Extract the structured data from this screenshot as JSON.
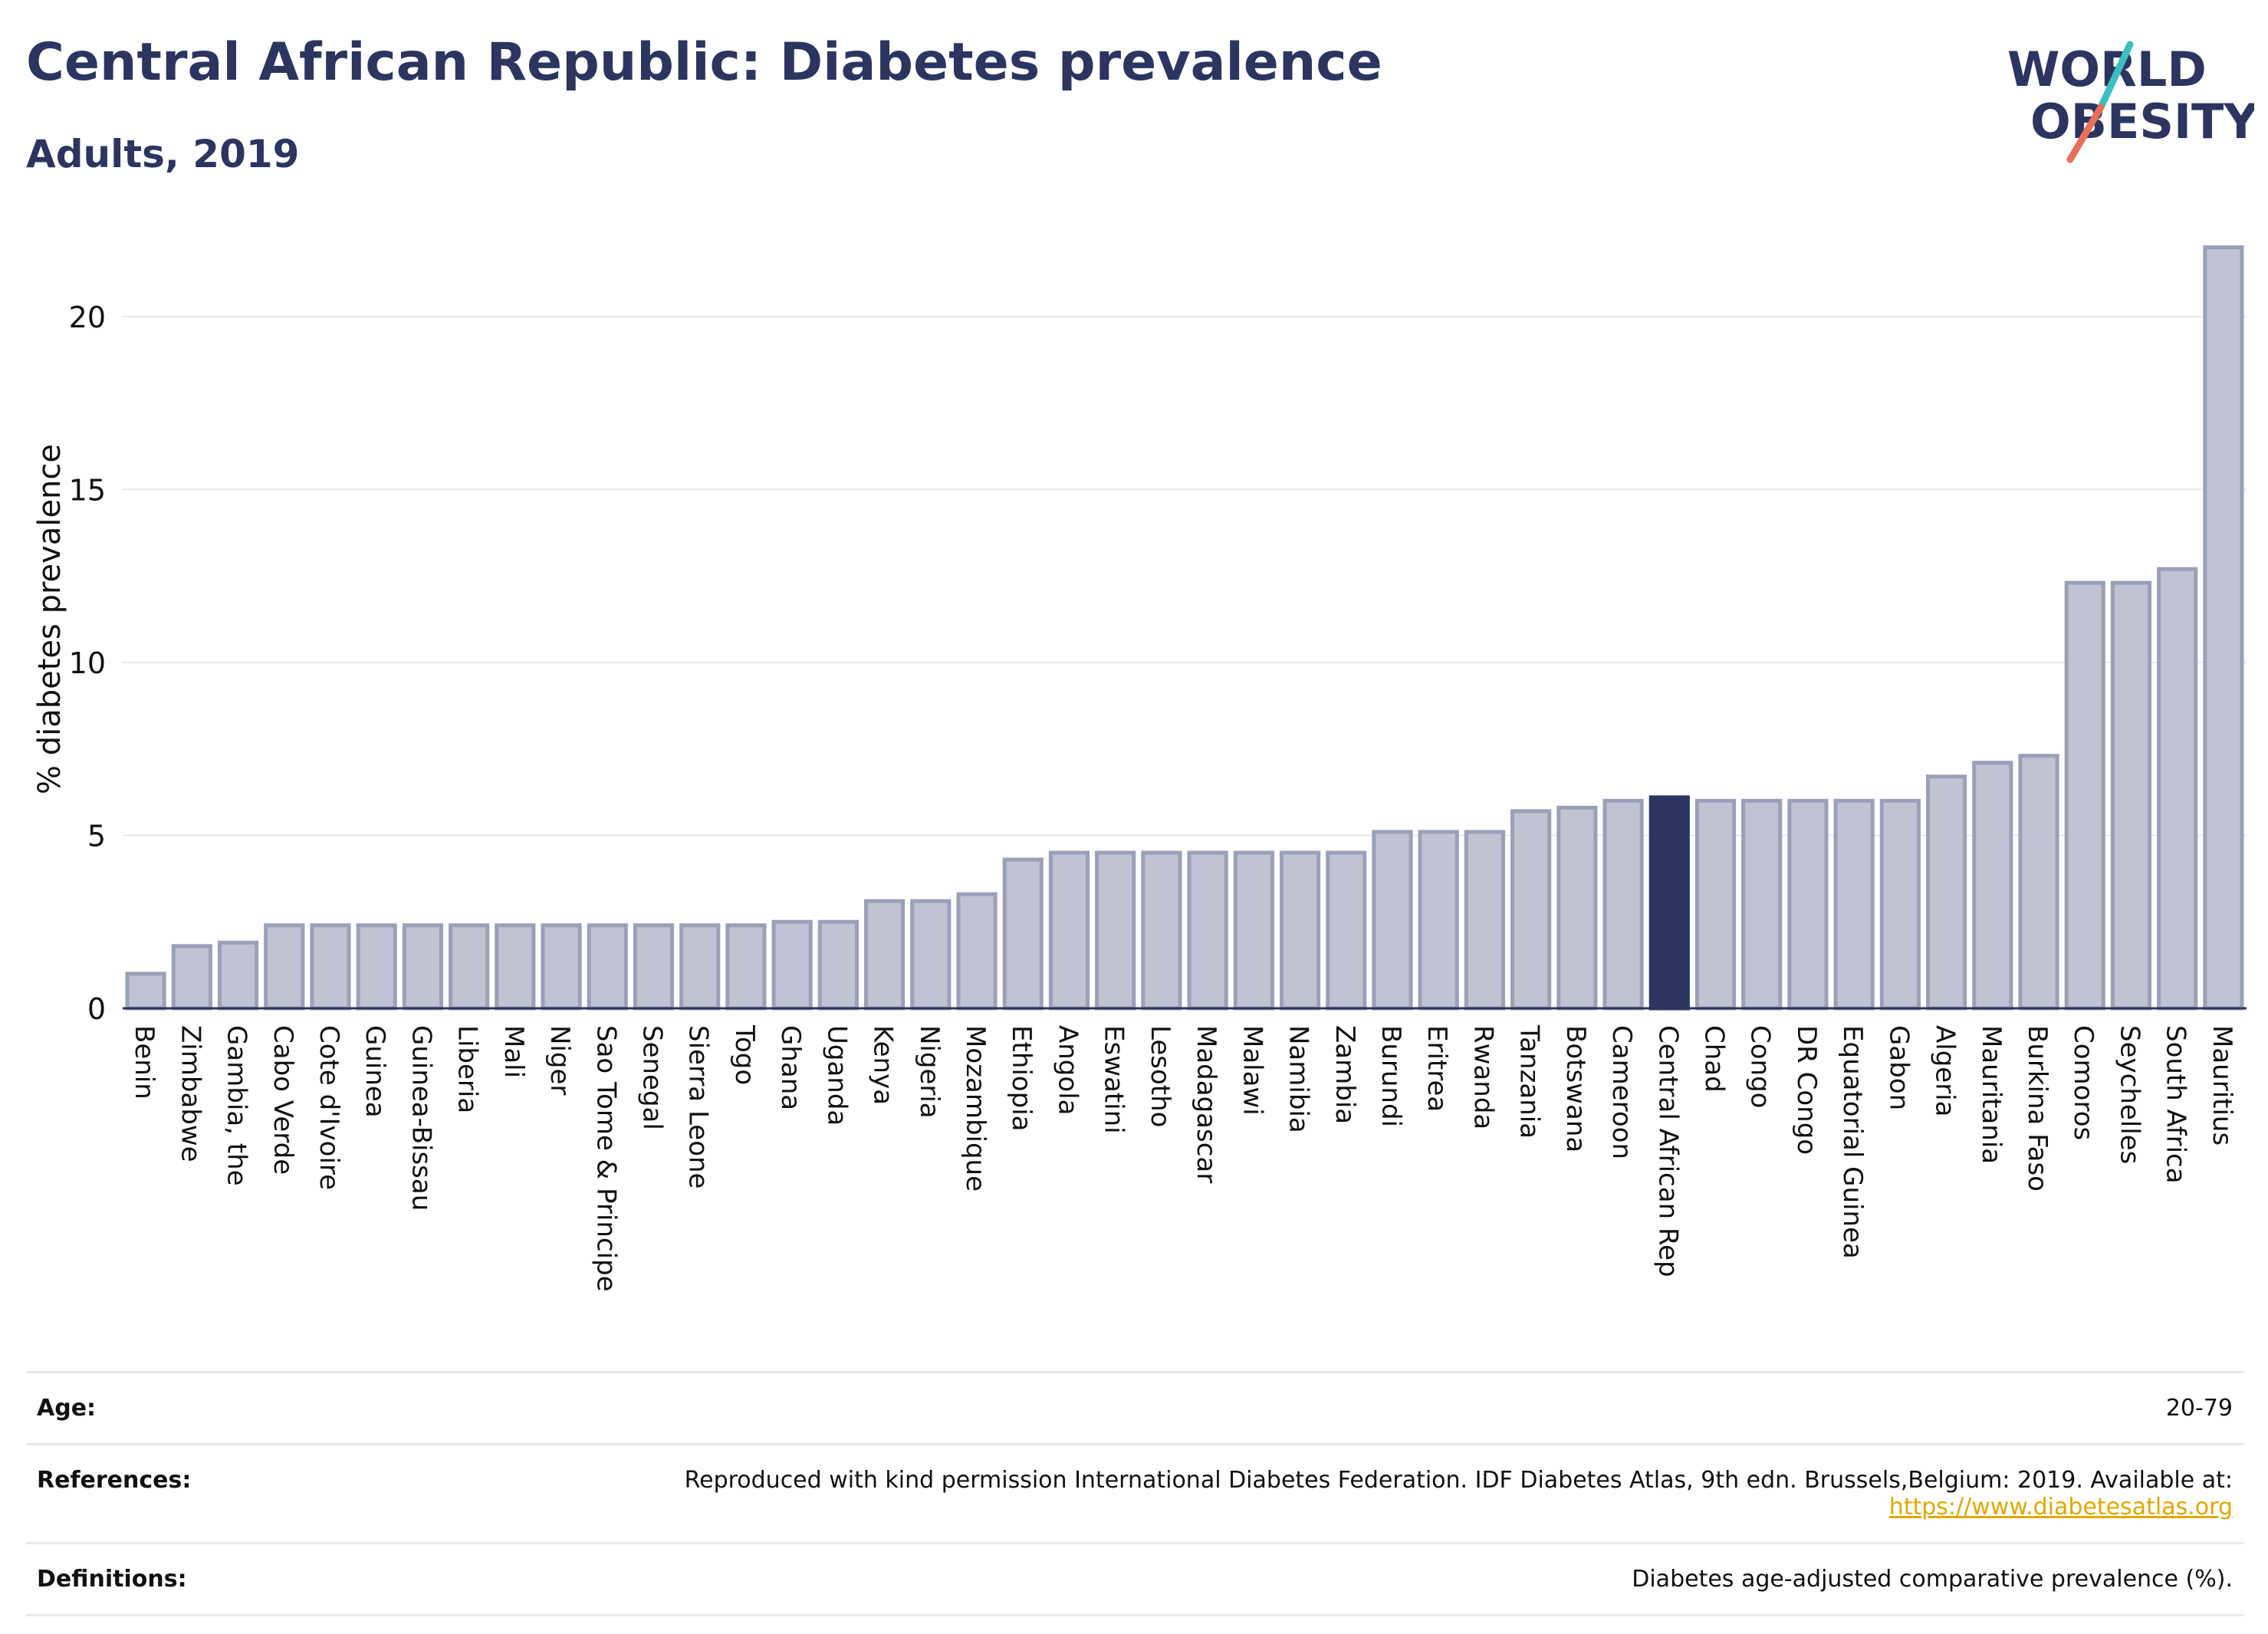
{
  "header": {
    "title": "Central African Republic: Diabetes prevalence",
    "subtitle": "Adults, 2019"
  },
  "logo": {
    "line1": "WORLD",
    "line2": "OBESITY",
    "accent_top": "#3bbfbf",
    "accent_bottom": "#e8705a",
    "text_color": "#2b3560"
  },
  "chart_data": {
    "type": "bar",
    "ylabel": "% diabetes prevalence",
    "xlabel": "",
    "ylim": [
      0,
      22.5
    ],
    "yticks": [
      0,
      5,
      10,
      15,
      20
    ],
    "grid": true,
    "highlight": "Central African Rep",
    "colors": {
      "bar": "#bfc3d2",
      "bar_edge": "#9aa0b8",
      "highlight": "#2b3560"
    },
    "categories": [
      "Benin",
      "Zimbabwe",
      "Gambia, the",
      "Cabo Verde",
      "Cote d'Ivoire",
      "Guinea",
      "Guinea-Bissau",
      "Liberia",
      "Mali",
      "Niger",
      "Sao Tome & Principe",
      "Senegal",
      "Sierra Leone",
      "Togo",
      "Ghana",
      "Uganda",
      "Kenya",
      "Nigeria",
      "Mozambique",
      "Ethiopia",
      "Angola",
      "Eswatini",
      "Lesotho",
      "Madagascar",
      "Malawi",
      "Namibia",
      "Zambia",
      "Burundi",
      "Eritrea",
      "Rwanda",
      "Tanzania",
      "Botswana",
      "Cameroon",
      "Central African Rep",
      "Chad",
      "Congo",
      "DR Congo",
      "Equatorial Guinea",
      "Gabon",
      "Algeria",
      "Mauritania",
      "Burkina Faso",
      "Comoros",
      "Seychelles",
      "South Africa",
      "Mauritius"
    ],
    "values": [
      1.0,
      1.8,
      1.9,
      2.4,
      2.4,
      2.4,
      2.4,
      2.4,
      2.4,
      2.4,
      2.4,
      2.4,
      2.4,
      2.4,
      2.5,
      2.5,
      3.1,
      3.1,
      3.3,
      4.3,
      4.5,
      4.5,
      4.5,
      4.5,
      4.5,
      4.5,
      4.5,
      5.1,
      5.1,
      5.1,
      5.7,
      5.8,
      6.0,
      6.1,
      6.0,
      6.0,
      6.0,
      6.0,
      6.0,
      6.7,
      7.1,
      7.3,
      12.3,
      12.3,
      12.7,
      22.0
    ]
  },
  "meta": {
    "age_label": "Age:",
    "age_value": "20-79",
    "references_label": "References:",
    "references_text": "Reproduced with kind permission International Diabetes Federation. IDF Diabetes Atlas, 9th edn. Brussels,Belgium: 2019. Available at:",
    "references_link": "https://www.diabetesatlas.org",
    "definitions_label": "Definitions:",
    "definitions_text": "Diabetes age-adjusted comparative prevalence (%)."
  }
}
